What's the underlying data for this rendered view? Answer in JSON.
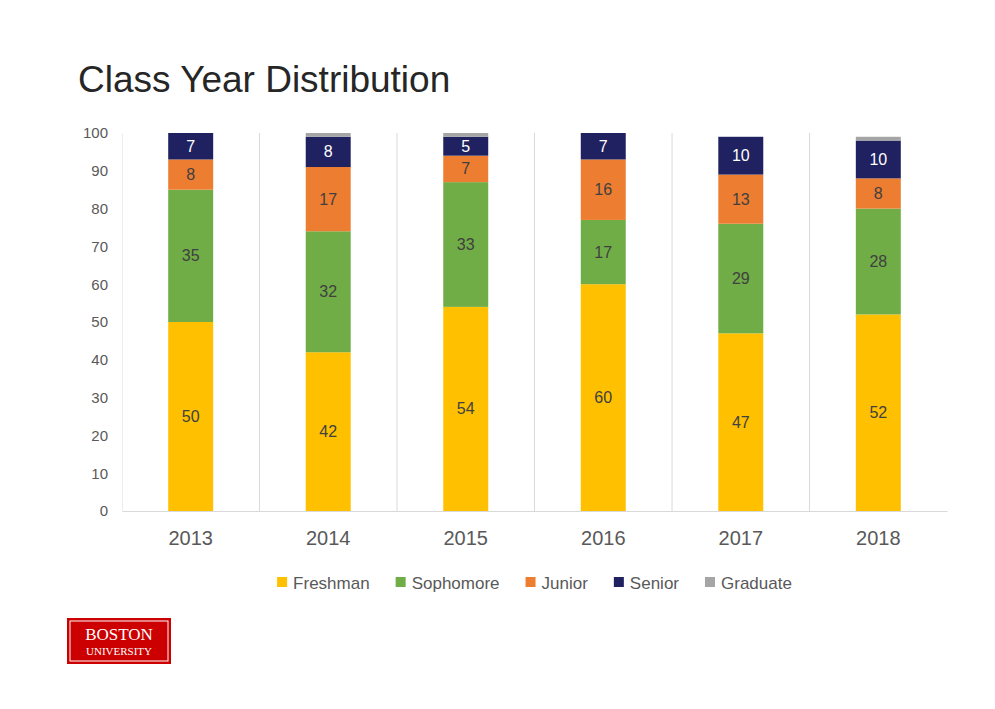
{
  "chart_data": {
    "type": "bar",
    "title": "Class Year Distribution",
    "categories": [
      "2013",
      "2014",
      "2015",
      "2016",
      "2017",
      "2018"
    ],
    "series": [
      {
        "name": "Freshman",
        "color": "#ffc000",
        "values": [
          50,
          42,
          54,
          60,
          47,
          52
        ]
      },
      {
        "name": "Sophomore",
        "color": "#70ad47",
        "values": [
          35,
          32,
          33,
          17,
          29,
          28
        ]
      },
      {
        "name": "Junior",
        "color": "#ed7d31",
        "values": [
          8,
          17,
          7,
          16,
          13,
          8
        ]
      },
      {
        "name": "Senior",
        "color": "#1f2160",
        "values": [
          7,
          8,
          5,
          7,
          10,
          10
        ]
      },
      {
        "name": "Graduate",
        "color": "#a5a5a5",
        "values": [
          0,
          1,
          1,
          0,
          0,
          1
        ],
        "data_labels": false
      }
    ],
    "stacked": true,
    "data_labels": true,
    "grid": "x",
    "legend": "bottom",
    "ylim": [
      0,
      100
    ],
    "yticks": [
      0,
      10,
      20,
      30,
      40,
      50,
      60,
      70,
      80,
      90,
      100
    ]
  },
  "logo": {
    "lines": [
      "BOSTON",
      "UNIVERSITY"
    ]
  }
}
